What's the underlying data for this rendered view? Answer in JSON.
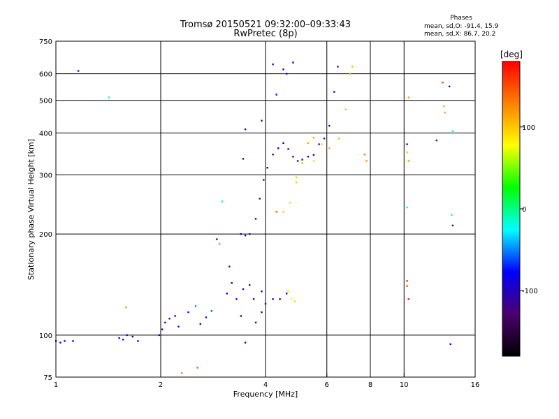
{
  "header": {
    "title_line1": "Tromsø 20150521 09:32:00–09:33:43",
    "title_line2": "RwPretec (8p)"
  },
  "stats": {
    "heading": "Phases",
    "line1": "mean, sd,O:  -91.4, 15.9",
    "line2": "mean, sd,X:   86.7, 20.2"
  },
  "chart_data": {
    "type": "scatter",
    "xlabel": "Frequency [MHz]",
    "ylabel": "Stationary phase Virtual Height [km]",
    "xscale": "log",
    "yscale": "log",
    "xlim": [
      1,
      16
    ],
    "ylim": [
      75,
      750
    ],
    "x_ticks": [
      1,
      2,
      4,
      6,
      8,
      10,
      16
    ],
    "y_ticks": [
      75,
      100,
      200,
      300,
      400,
      500,
      600,
      750
    ],
    "grid": true,
    "colorbar": {
      "label": "[deg]",
      "range": [
        -180,
        180
      ],
      "ticks": [
        100,
        0,
        -100
      ],
      "colors": [
        "#000000",
        "#4b006e",
        "#0000ff",
        "#00ffff",
        "#00ff00",
        "#ffff00",
        "#ff8000",
        "#ff0000"
      ]
    },
    "series": [
      {
        "points": [
          [
            1.0,
            96,
            -95
          ],
          [
            1.03,
            95,
            -95
          ],
          [
            1.06,
            96,
            -92
          ],
          [
            1.12,
            96,
            -95
          ],
          [
            1.16,
            612,
            -100
          ],
          [
            1.42,
            510,
            -10
          ],
          [
            1.52,
            98,
            -95
          ],
          [
            1.56,
            97,
            -90
          ],
          [
            1.6,
            100,
            -95
          ],
          [
            1.66,
            99,
            -92
          ],
          [
            1.72,
            96,
            -95
          ],
          [
            1.59,
            121,
            120
          ],
          [
            1.98,
            100,
            -95
          ],
          [
            2.02,
            104,
            -92
          ],
          [
            2.06,
            109,
            -90
          ],
          [
            2.12,
            112,
            -88
          ],
          [
            2.2,
            114,
            -92
          ],
          [
            2.25,
            106,
            -90
          ],
          [
            2.4,
            117,
            -90
          ],
          [
            2.52,
            122,
            -50
          ],
          [
            2.6,
            108,
            -95
          ],
          [
            2.7,
            113,
            -85
          ],
          [
            2.8,
            118,
            -60
          ],
          [
            2.9,
            193,
            -130
          ],
          [
            2.95,
            187,
            30
          ],
          [
            3.1,
            133,
            -95
          ],
          [
            3.15,
            160,
            -95
          ],
          [
            3.2,
            143,
            -100
          ],
          [
            3.3,
            128,
            -95
          ],
          [
            3.45,
            137,
            -95
          ],
          [
            3.6,
            141,
            -100
          ],
          [
            3.7,
            128,
            -90
          ],
          [
            3.9,
            135,
            -95
          ],
          [
            4.0,
            124,
            -95
          ],
          [
            4.2,
            128,
            -92
          ],
          [
            4.4,
            128,
            -95
          ],
          [
            4.6,
            133,
            -95
          ],
          [
            4.75,
            128,
            80
          ],
          [
            4.85,
            126,
            95
          ],
          [
            4.65,
            135,
            90
          ],
          [
            3.75,
            109,
            -95
          ],
          [
            3.4,
            114,
            -95
          ],
          [
            3.9,
            117,
            -92
          ],
          [
            3.0,
            250,
            -10
          ],
          [
            3.5,
            95,
            -100
          ],
          [
            3.45,
            335,
            -100
          ],
          [
            3.4,
            200,
            -100
          ],
          [
            3.5,
            198,
            -100
          ],
          [
            3.6,
            200,
            -95
          ],
          [
            3.75,
            222,
            -95
          ],
          [
            3.85,
            255,
            -95
          ],
          [
            3.95,
            290,
            -95
          ],
          [
            4.05,
            315,
            -95
          ],
          [
            4.2,
            345,
            -95
          ],
          [
            4.35,
            360,
            -95
          ],
          [
            4.5,
            373,
            -95
          ],
          [
            4.65,
            358,
            -95
          ],
          [
            4.8,
            340,
            -95
          ],
          [
            4.95,
            330,
            -95
          ],
          [
            5.1,
            333,
            -95
          ],
          [
            5.3,
            340,
            -95
          ],
          [
            5.5,
            344,
            -95
          ],
          [
            5.7,
            370,
            -95
          ],
          [
            5.9,
            385,
            -95
          ],
          [
            6.1,
            420,
            -95
          ],
          [
            6.3,
            530,
            -95
          ],
          [
            6.45,
            630,
            -100
          ],
          [
            3.5,
            410,
            -90
          ],
          [
            3.9,
            435,
            -95
          ],
          [
            4.3,
            520,
            -95
          ],
          [
            4.5,
            618,
            -95
          ],
          [
            4.6,
            600,
            -95
          ],
          [
            4.2,
            640,
            -100
          ],
          [
            4.8,
            648,
            -90
          ],
          [
            4.5,
            233,
            100
          ],
          [
            4.7,
            248,
            95
          ],
          [
            4.9,
            285,
            100
          ],
          [
            5.1,
            325,
            105
          ],
          [
            5.3,
            373,
            110
          ],
          [
            5.5,
            387,
            110
          ],
          [
            5.8,
            370,
            100
          ],
          [
            6.1,
            360,
            110
          ],
          [
            6.5,
            385,
            110
          ],
          [
            6.8,
            470,
            110
          ],
          [
            7.0,
            600,
            110
          ],
          [
            7.1,
            630,
            110
          ],
          [
            4.3,
            233,
            140
          ],
          [
            4.9,
            295,
            95
          ],
          [
            5.5,
            330,
            90
          ],
          [
            7.8,
            330,
            120
          ],
          [
            7.7,
            345,
            130
          ],
          [
            10.2,
            370,
            -90
          ],
          [
            10.2,
            350,
            100
          ],
          [
            10.3,
            330,
            120
          ],
          [
            10.2,
            240,
            -30
          ],
          [
            10.2,
            145,
            160
          ],
          [
            10.2,
            140,
            150
          ],
          [
            10.3,
            128,
            170
          ],
          [
            10.3,
            510,
            120
          ],
          [
            12.4,
            380,
            -130
          ],
          [
            12.9,
            565,
            160
          ],
          [
            13.0,
            480,
            110
          ],
          [
            13.1,
            460,
            120
          ],
          [
            13.5,
            550,
            -80
          ],
          [
            13.8,
            405,
            -20
          ],
          [
            13.7,
            228,
            0
          ],
          [
            13.8,
            212,
            -140
          ],
          [
            13.6,
            94,
            -80
          ],
          [
            2.55,
            80,
            150
          ],
          [
            2.3,
            77,
            130
          ]
        ]
      }
    ]
  }
}
